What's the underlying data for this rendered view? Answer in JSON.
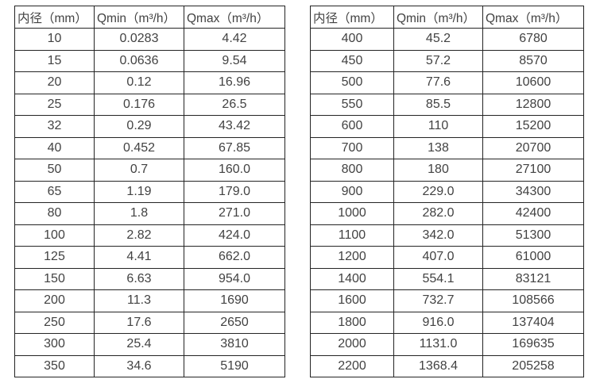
{
  "colors": {
    "background": "#ffffff",
    "border": "#242424",
    "text": "#424242"
  },
  "chart_data": [
    {
      "type": "table",
      "columns": [
        "内径（mm）",
        "Qmin（m³/h）",
        "Qmax（m³/h）"
      ],
      "rows": [
        [
          "10",
          "0.0283",
          "4.42"
        ],
        [
          "15",
          "0.0636",
          "9.54"
        ],
        [
          "20",
          "0.12",
          "16.96"
        ],
        [
          "25",
          "0.176",
          "26.5"
        ],
        [
          "32",
          "0.29",
          "43.42"
        ],
        [
          "40",
          "0.452",
          "67.85"
        ],
        [
          "50",
          "0.7",
          "160.0"
        ],
        [
          "65",
          "1.19",
          "179.0"
        ],
        [
          "80",
          "1.8",
          "271.0"
        ],
        [
          "100",
          "2.82",
          "424.0"
        ],
        [
          "125",
          "4.41",
          "662.0"
        ],
        [
          "150",
          "6.63",
          "954.0"
        ],
        [
          "200",
          "11.3",
          "1690"
        ],
        [
          "250",
          "17.6",
          "2650"
        ],
        [
          "300",
          "25.4",
          "3810"
        ],
        [
          "350",
          "34.6",
          "5190"
        ]
      ]
    },
    {
      "type": "table",
      "columns": [
        "内径（mm）",
        "Qmin（m³/h）",
        "Qmax（m³/h）"
      ],
      "rows": [
        [
          "400",
          "45.2",
          "6780"
        ],
        [
          "450",
          "57.2",
          "8570"
        ],
        [
          "500",
          "77.6",
          "10600"
        ],
        [
          "550",
          "85.5",
          "12800"
        ],
        [
          "600",
          "110",
          "15200"
        ],
        [
          "700",
          "138",
          "20700"
        ],
        [
          "800",
          "180",
          "27100"
        ],
        [
          "900",
          "229.0",
          "34300"
        ],
        [
          "1000",
          "282.0",
          "42400"
        ],
        [
          "1100",
          "342.0",
          "51300"
        ],
        [
          "1200",
          "407.0",
          "61000"
        ],
        [
          "1400",
          "554.1",
          "83121"
        ],
        [
          "1600",
          "732.7",
          "108566"
        ],
        [
          "1800",
          "916.0",
          "137404"
        ],
        [
          "2000",
          "1131.0",
          "169635"
        ],
        [
          "2200",
          "1368.4",
          "205258"
        ]
      ]
    }
  ]
}
